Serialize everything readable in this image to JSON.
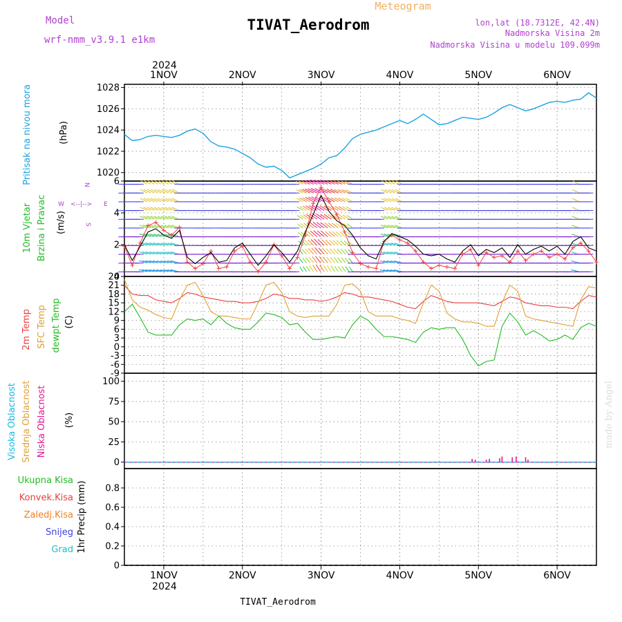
{
  "header": {
    "meteogram_label": "Meteogram",
    "title": "TIVAT_Aerodrom",
    "model_label": "Model",
    "model_name": "wrf-nmm_v3.9.1  e1km",
    "lonlat": "lon,lat (18.7312E, 42.4N)",
    "elevation": "Nadmorska Visina 2m",
    "model_elevation": "Nadmorska Visina u modelu 109.099m",
    "footer": "TIVAT_Aerodrom",
    "watermark": "made by Angel"
  },
  "time_axis": {
    "year": "2024",
    "day_labels": [
      "1NOV",
      "2NOV",
      "3NOV",
      "4NOV",
      "5NOV",
      "6NOV"
    ]
  },
  "colors": {
    "pressure": "#1aa3e0",
    "wind_label": "#22bb22",
    "wind_speed": "#000000",
    "gust": "#ee4444",
    "temp_2m": "#e84040",
    "temp_sfc": "#e0a030",
    "temp_dew": "#22bb22",
    "cloud_high": "#18b8e0",
    "cloud_mid": "#e0a030",
    "cloud_low": "#e01890",
    "precip_total": "#22bb22",
    "precip_conv": "#e84040",
    "precip_frozen": "#f08020",
    "precip_snow": "#4040e0",
    "precip_graupel": "#20c0c0",
    "rose": "#b040d0"
  },
  "chart_data": [
    {
      "type": "line",
      "panel": "pressure",
      "ylabel_main": "Pritisak na nivou mora",
      "unit": "(hPa)",
      "ylim": [
        1019.2,
        1028.3
      ],
      "yticks": [
        1020,
        1022,
        1024,
        1026,
        1028
      ],
      "grid": true,
      "series": [
        {
          "x": [
            0.5,
            0.6,
            0.7,
            0.8,
            0.9,
            1.0,
            1.1,
            1.2,
            1.3,
            1.4,
            1.5,
            1.6,
            1.7,
            1.8,
            1.9,
            2.0,
            2.1,
            2.2,
            2.3,
            2.4,
            2.5,
            2.6,
            2.7,
            2.8,
            2.9,
            3.0,
            3.1,
            3.2,
            3.3,
            3.4,
            3.5,
            3.6,
            3.7,
            3.8,
            3.9,
            4.0,
            4.1,
            4.2,
            4.3,
            4.4,
            4.5,
            4.6,
            4.7,
            4.8,
            4.9,
            5.0,
            5.1,
            5.2,
            5.3,
            5.4,
            5.5,
            5.6,
            5.7,
            5.8,
            5.9,
            6.0,
            6.1,
            6.2,
            6.3,
            6.4,
            6.5
          ],
          "values": [
            1023.6,
            1023.0,
            1023.1,
            1023.4,
            1023.5,
            1023.4,
            1023.3,
            1023.5,
            1023.9,
            1024.1,
            1023.7,
            1022.9,
            1022.5,
            1022.4,
            1022.2,
            1021.8,
            1021.4,
            1020.8,
            1020.5,
            1020.6,
            1020.2,
            1019.5,
            1019.8,
            1020.1,
            1020.4,
            1020.8,
            1021.4,
            1021.6,
            1022.3,
            1023.2,
            1023.6,
            1023.8,
            1024.0,
            1024.3,
            1024.6,
            1024.9,
            1024.6,
            1025.0,
            1025.5,
            1025.0,
            1024.5,
            1024.6,
            1024.9,
            1025.2,
            1025.1,
            1025.0,
            1025.2,
            1025.6,
            1026.1,
            1026.4,
            1026.1,
            1025.8,
            1026.0,
            1026.3,
            1026.6,
            1026.7,
            1026.6,
            1026.8,
            1026.9,
            1027.5,
            1027.0
          ]
        }
      ]
    },
    {
      "type": "line",
      "panel": "wind",
      "ylabel_main": "10m Vjetar",
      "ylabel_sub": "Brzina i Pravac",
      "unit": "(m/s)",
      "rose": {
        "n": "N",
        "s": "S",
        "e": "E",
        "w": "W"
      },
      "ylim": [
        0,
        6
      ],
      "yticks": [
        0,
        2,
        4,
        6
      ],
      "grid": true,
      "series": [
        {
          "name": "speed",
          "x": [
            0.5,
            0.6,
            0.7,
            0.8,
            0.9,
            1.0,
            1.1,
            1.2,
            1.3,
            1.4,
            1.5,
            1.6,
            1.7,
            1.8,
            1.9,
            2.0,
            2.1,
            2.2,
            2.3,
            2.4,
            2.5,
            2.6,
            2.7,
            2.8,
            2.9,
            3.0,
            3.1,
            3.2,
            3.3,
            3.4,
            3.5,
            3.6,
            3.7,
            3.8,
            3.9,
            4.0,
            4.1,
            4.2,
            4.3,
            4.4,
            4.5,
            4.6,
            4.7,
            4.8,
            4.9,
            5.0,
            5.1,
            5.2,
            5.3,
            5.4,
            5.5,
            5.6,
            5.7,
            5.8,
            5.9,
            6.0,
            6.1,
            6.2,
            6.3,
            6.4,
            6.5
          ],
          "values": [
            2.0,
            1.0,
            1.9,
            2.8,
            3.0,
            2.6,
            2.4,
            2.9,
            1.2,
            0.8,
            1.2,
            1.5,
            0.9,
            1.0,
            1.8,
            2.1,
            1.4,
            0.7,
            1.3,
            2.0,
            1.5,
            0.9,
            1.6,
            2.8,
            3.9,
            5.1,
            4.1,
            3.5,
            3.2,
            2.6,
            1.8,
            1.3,
            1.1,
            2.2,
            2.7,
            2.5,
            2.3,
            1.9,
            1.4,
            1.3,
            1.4,
            1.1,
            0.9,
            1.6,
            2.0,
            1.3,
            1.7,
            1.5,
            1.8,
            1.2,
            2.0,
            1.4,
            1.7,
            1.9,
            1.6,
            1.9,
            1.4,
            2.2,
            2.5,
            1.8,
            1.6
          ]
        },
        {
          "name": "gust",
          "x": [
            0.5,
            0.6,
            0.7,
            0.8,
            0.9,
            1.0,
            1.1,
            1.2,
            1.3,
            1.4,
            1.5,
            1.6,
            1.7,
            1.8,
            1.9,
            2.0,
            2.1,
            2.2,
            2.3,
            2.4,
            2.5,
            2.6,
            2.7,
            2.8,
            2.9,
            3.0,
            3.1,
            3.2,
            3.3,
            3.4,
            3.5,
            3.6,
            3.7,
            3.8,
            3.9,
            4.0,
            4.1,
            4.2,
            4.3,
            4.4,
            4.5,
            4.6,
            4.7,
            4.8,
            4.9,
            5.0,
            5.1,
            5.2,
            5.3,
            5.4,
            5.5,
            5.6,
            5.7,
            5.8,
            5.9,
            6.0,
            6.1,
            6.2,
            6.3,
            6.4,
            6.5
          ],
          "values": [
            1.9,
            0.7,
            2.1,
            3.2,
            3.4,
            2.9,
            2.6,
            3.1,
            0.9,
            0.5,
            0.8,
            1.6,
            0.5,
            0.6,
            1.6,
            1.9,
            0.9,
            0.3,
            0.9,
            2.0,
            1.3,
            0.5,
            1.2,
            2.6,
            4.6,
            5.6,
            4.7,
            3.9,
            2.8,
            1.5,
            0.8,
            0.6,
            0.5,
            2.2,
            2.6,
            2.3,
            2.1,
            1.6,
            0.9,
            0.5,
            0.7,
            0.6,
            0.5,
            1.4,
            1.7,
            0.7,
            1.5,
            1.2,
            1.3,
            0.9,
            1.6,
            1.0,
            1.4,
            1.6,
            1.2,
            1.4,
            1.1,
            1.8,
            2.1,
            1.6,
            0.9
          ]
        }
      ]
    },
    {
      "type": "line",
      "panel": "temperature",
      "ylabel_1": "2m Temp",
      "ylabel_2": "SFC Temp",
      "ylabel_3": "dewpt Temp",
      "unit": "(C)",
      "ylim": [
        -9,
        24
      ],
      "yticks": [
        -9,
        -6,
        -3,
        0,
        3,
        6,
        9,
        12,
        15,
        18,
        21,
        24
      ],
      "grid": true,
      "series": [
        {
          "name": "2m Temp",
          "x": [
            0.5,
            0.6,
            0.7,
            0.8,
            0.9,
            1.0,
            1.1,
            1.2,
            1.3,
            1.4,
            1.5,
            1.6,
            1.7,
            1.8,
            1.9,
            2.0,
            2.1,
            2.2,
            2.3,
            2.4,
            2.5,
            2.6,
            2.7,
            2.8,
            2.9,
            3.0,
            3.1,
            3.2,
            3.3,
            3.4,
            3.5,
            3.6,
            3.7,
            3.8,
            3.9,
            4.0,
            4.1,
            4.2,
            4.3,
            4.4,
            4.5,
            4.6,
            4.7,
            4.8,
            4.9,
            5.0,
            5.1,
            5.2,
            5.3,
            5.4,
            5.5,
            5.6,
            5.7,
            5.8,
            5.9,
            6.0,
            6.1,
            6.2,
            6.3,
            6.4,
            6.5
          ],
          "values": [
            21.0,
            18.0,
            17.5,
            17.5,
            16.0,
            15.5,
            15.0,
            16.5,
            18.5,
            18.0,
            17.0,
            16.5,
            16.0,
            15.5,
            15.5,
            15.0,
            15.0,
            15.5,
            16.5,
            18.0,
            17.5,
            16.5,
            16.5,
            16.0,
            16.0,
            15.5,
            16.0,
            17.0,
            18.5,
            18.0,
            17.0,
            17.0,
            16.5,
            16.0,
            15.5,
            14.5,
            13.5,
            13.0,
            15.5,
            17.5,
            16.5,
            15.5,
            15.0,
            15.0,
            15.0,
            15.0,
            14.5,
            14.0,
            15.5,
            17.0,
            16.5,
            15.0,
            14.5,
            14.0,
            14.0,
            13.5,
            13.5,
            13.0,
            15.5,
            17.5,
            17.0
          ]
        },
        {
          "name": "SFC Temp",
          "x": [
            0.5,
            0.6,
            0.7,
            0.8,
            0.9,
            1.0,
            1.1,
            1.2,
            1.3,
            1.4,
            1.5,
            1.6,
            1.7,
            1.8,
            1.9,
            2.0,
            2.1,
            2.2,
            2.3,
            2.4,
            2.5,
            2.6,
            2.7,
            2.8,
            2.9,
            3.0,
            3.1,
            3.2,
            3.3,
            3.4,
            3.5,
            3.6,
            3.7,
            3.8,
            3.9,
            4.0,
            4.1,
            4.2,
            4.3,
            4.4,
            4.5,
            4.6,
            4.7,
            4.8,
            4.9,
            5.0,
            5.1,
            5.2,
            5.3,
            5.4,
            5.5,
            5.6,
            5.7,
            5.8,
            5.9,
            6.0,
            6.1,
            6.2,
            6.3,
            6.4,
            6.5
          ],
          "values": [
            23.0,
            16.0,
            13.5,
            12.5,
            11.0,
            10.0,
            9.5,
            16.0,
            21.0,
            22.0,
            17.5,
            12.0,
            10.5,
            10.5,
            10.0,
            9.5,
            9.5,
            15.0,
            21.0,
            22.0,
            18.5,
            12.0,
            10.5,
            10.0,
            10.5,
            10.5,
            10.5,
            14.5,
            21.0,
            21.5,
            19.0,
            12.0,
            10.5,
            10.5,
            10.5,
            9.5,
            9.0,
            8.0,
            15.0,
            21.0,
            19.0,
            11.5,
            9.5,
            8.5,
            8.5,
            8.0,
            7.0,
            7.0,
            15.0,
            21.0,
            19.0,
            10.5,
            9.5,
            9.0,
            8.5,
            8.0,
            7.5,
            7.0,
            16.0,
            20.5,
            20.0
          ]
        },
        {
          "name": "dewpt Temp",
          "x": [
            0.5,
            0.6,
            0.7,
            0.8,
            0.9,
            1.0,
            1.1,
            1.2,
            1.3,
            1.4,
            1.5,
            1.6,
            1.7,
            1.8,
            1.9,
            2.0,
            2.1,
            2.2,
            2.3,
            2.4,
            2.5,
            2.6,
            2.7,
            2.8,
            2.9,
            3.0,
            3.1,
            3.2,
            3.3,
            3.4,
            3.5,
            3.6,
            3.7,
            3.8,
            3.9,
            4.0,
            4.1,
            4.2,
            4.3,
            4.4,
            4.5,
            4.6,
            4.7,
            4.8,
            4.9,
            5.0,
            5.1,
            5.2,
            5.3,
            5.4,
            5.5,
            5.6,
            5.7,
            5.8,
            5.9,
            6.0,
            6.1,
            6.2,
            6.3,
            6.4,
            6.5
          ],
          "values": [
            12.0,
            14.5,
            10.0,
            5.0,
            4.0,
            4.0,
            4.0,
            7.5,
            9.5,
            9.0,
            9.5,
            7.5,
            10.5,
            8.0,
            6.5,
            6.0,
            6.0,
            8.5,
            11.5,
            11.0,
            10.0,
            7.5,
            8.0,
            5.0,
            2.5,
            2.5,
            3.0,
            3.5,
            3.0,
            7.5,
            10.5,
            9.0,
            6.0,
            3.5,
            3.5,
            3.0,
            2.5,
            1.5,
            5.0,
            6.5,
            6.0,
            6.5,
            6.5,
            2.5,
            -3.0,
            -6.5,
            -5.0,
            -4.5,
            7.0,
            11.5,
            8.5,
            4.0,
            5.5,
            4.0,
            2.0,
            2.5,
            4.0,
            2.5,
            6.5,
            8.0,
            7.0
          ]
        }
      ]
    },
    {
      "type": "bar",
      "panel": "cloud",
      "ylabel_1": "Visoka Oblacnost",
      "ylabel_2": "Srednja Oblacnost",
      "ylabel_3": "Niska Oblacnost",
      "unit": "(%)",
      "ylim": [
        -8,
        110
      ],
      "yticks": [
        0,
        25,
        50,
        75,
        100
      ],
      "grid": true,
      "series": [
        {
          "name": "Niska Oblacnost",
          "x": [
            4.92,
            4.96,
            5.1,
            5.14,
            5.27,
            5.3,
            5.43,
            5.48,
            5.6,
            5.63
          ],
          "values": [
            4,
            3,
            3,
            4,
            5,
            7,
            6,
            7,
            6,
            3
          ]
        }
      ]
    },
    {
      "type": "bar",
      "panel": "precip",
      "legend": [
        "Ukupna Kisa",
        "Konvek.Kisa",
        "Zaledj.Kisa",
        "Snijeg",
        "Grad"
      ],
      "unit": "1hr Precip (mm)",
      "ylim": [
        0,
        1.0
      ],
      "yticks": [
        "0",
        "0.2",
        "0.4",
        "0.6",
        "0.8"
      ],
      "grid": true,
      "values": []
    }
  ]
}
